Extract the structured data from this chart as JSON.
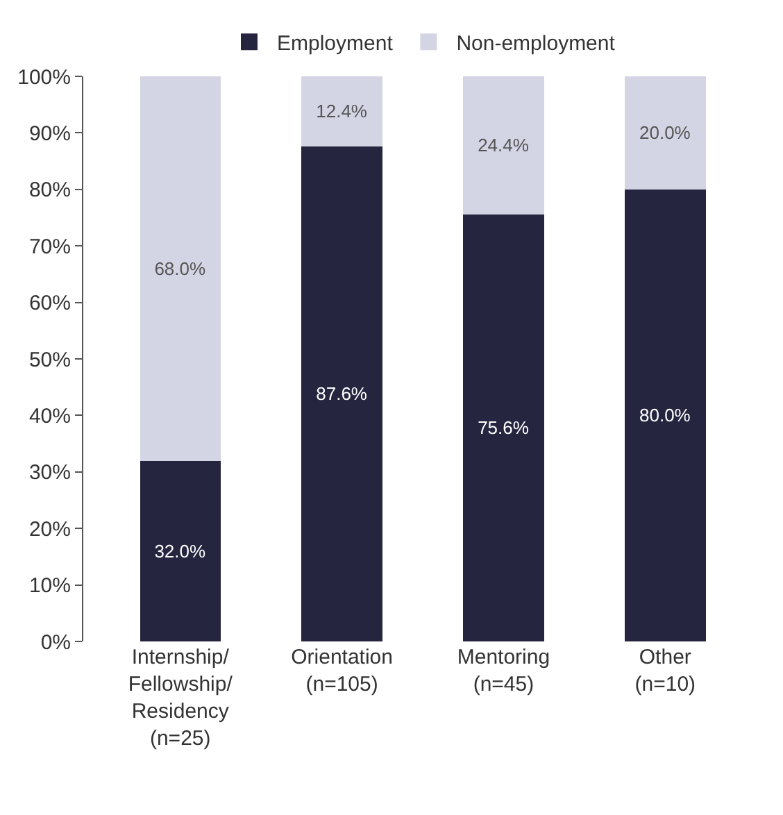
{
  "chart_data": {
    "type": "bar",
    "stacked": true,
    "categories": [
      "Internship/\nFellowship/\nResidency\n(n=25)",
      "Orientation\n(n=105)",
      "Mentoring\n(n=45)",
      "Other\n(n=10)"
    ],
    "series": [
      {
        "name": "Employment",
        "color": "#25253f",
        "values": [
          32.0,
          87.6,
          75.6,
          80.0
        ],
        "value_labels": [
          "32.0%",
          "87.6%",
          "75.6%",
          "80.0%"
        ]
      },
      {
        "name": "Non-employment",
        "color": "#d4d5e4",
        "values": [
          68.0,
          12.4,
          24.4,
          20.0
        ],
        "value_labels": [
          "68.0%",
          "12.4%",
          "24.4%",
          "20.0%"
        ]
      }
    ],
    "ylim": [
      0,
      100
    ],
    "yticks": [
      {
        "value": 0,
        "label": "0%"
      },
      {
        "value": 10,
        "label": "10%"
      },
      {
        "value": 20,
        "label": "20%"
      },
      {
        "value": 30,
        "label": "30%"
      },
      {
        "value": 40,
        "label": "40%"
      },
      {
        "value": 50,
        "label": "50%"
      },
      {
        "value": 60,
        "label": "60%"
      },
      {
        "value": 70,
        "label": "70%"
      },
      {
        "value": 80,
        "label": "80%"
      },
      {
        "value": 90,
        "label": "90%"
      },
      {
        "value": 100,
        "label": "100%"
      }
    ],
    "legend": "top"
  }
}
